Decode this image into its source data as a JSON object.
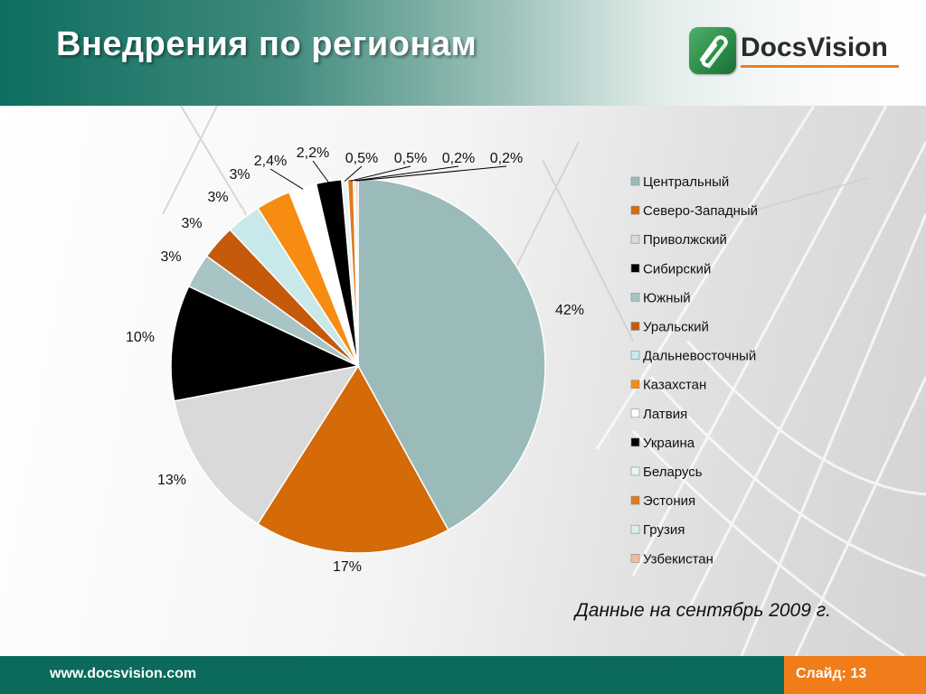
{
  "slide": {
    "title": "Внедрения по регионам",
    "logo_text": "DocsVision",
    "note": "Данные на сентябрь 2009 г.",
    "footer_url": "www.docsvision.com",
    "slide_number": "Слайд: 13"
  },
  "colors": {
    "header_teal": "#0e6e5f",
    "footer_teal": "#0c6a5b",
    "accent_orange": "#f07c1a",
    "logo_green": "#2b8a47"
  },
  "chart_data": {
    "type": "pie",
    "title": "",
    "legend_position": "right",
    "slices": [
      {
        "label": "Центральный",
        "value": 42,
        "value_label": "42%",
        "color": "#9bbbbb"
      },
      {
        "label": "Северо-Западный",
        "value": 17,
        "value_label": "17%",
        "color": "#d46a08"
      },
      {
        "label": "Приволжский",
        "value": 13,
        "value_label": "13%",
        "color": "#d9d9d9"
      },
      {
        "label": "Сибирский",
        "value": 10,
        "value_label": "10%",
        "color": "#000000"
      },
      {
        "label": "Южный",
        "value": 3,
        "value_label": "3%",
        "color": "#a9c4c4"
      },
      {
        "label": "Уральский",
        "value": 3,
        "value_label": "3%",
        "color": "#c55a0b"
      },
      {
        "label": "Дальневосточный",
        "value": 3,
        "value_label": "3%",
        "color": "#c9e8ea"
      },
      {
        "label": "Казахстан",
        "value": 3,
        "value_label": "3%",
        "color": "#f78c12"
      },
      {
        "label": "Латвия",
        "value": 2.4,
        "value_label": "2,4%",
        "color": "#ffffff"
      },
      {
        "label": "Украина",
        "value": 2.2,
        "value_label": "2,2%",
        "color": "#000000"
      },
      {
        "label": "Беларусь",
        "value": 0.5,
        "value_label": "0,5%",
        "color": "#e8f4f6"
      },
      {
        "label": "Эстония",
        "value": 0.5,
        "value_label": "0,5%",
        "color": "#e07a1e"
      },
      {
        "label": "Грузия",
        "value": 0.2,
        "value_label": "0,2%",
        "color": "#d8f0f2"
      },
      {
        "label": "Узбекистан",
        "value": 0.2,
        "value_label": "0,2%",
        "color": "#f2b8a0"
      }
    ]
  }
}
